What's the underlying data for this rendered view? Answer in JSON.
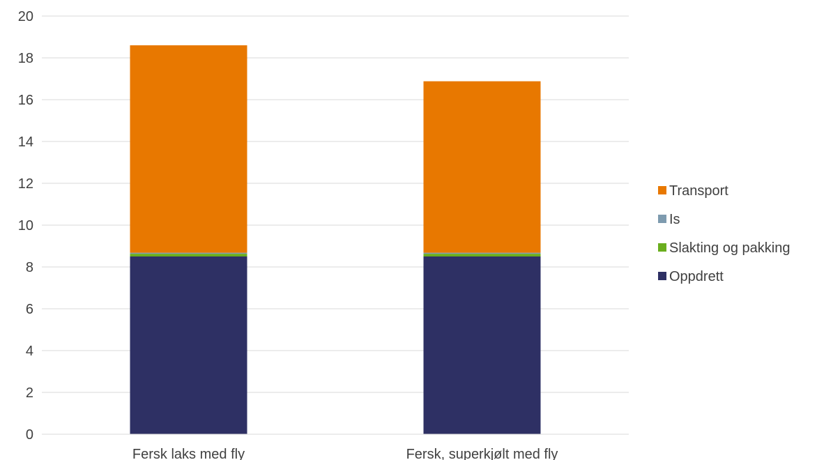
{
  "chart_data": {
    "type": "bar",
    "stacked": true,
    "categories": [
      "Fersk laks med fly",
      "Fersk, superkjølt med fly"
    ],
    "series": [
      {
        "name": "Oppdrett",
        "color": "#2E3064",
        "values": [
          8.5,
          8.5
        ]
      },
      {
        "name": "Slakting og pakking",
        "color": "#6AAE1E",
        "values": [
          0.13,
          0.13
        ]
      },
      {
        "name": "Is",
        "color": "#7E9BAF",
        "values": [
          0.05,
          0.05
        ]
      },
      {
        "name": "Transport",
        "color": "#E87800",
        "values": [
          9.92,
          8.2
        ]
      }
    ],
    "legend_order": [
      "Transport",
      "Is",
      "Slakting og pakking",
      "Oppdrett"
    ],
    "ylim": [
      0,
      20
    ],
    "yticks": [
      0,
      2,
      4,
      6,
      8,
      10,
      12,
      14,
      16,
      18,
      20
    ],
    "grid": true,
    "gridline_color": "#D9D9D9",
    "legend_position": "right",
    "title": "",
    "xlabel": "",
    "ylabel": ""
  }
}
